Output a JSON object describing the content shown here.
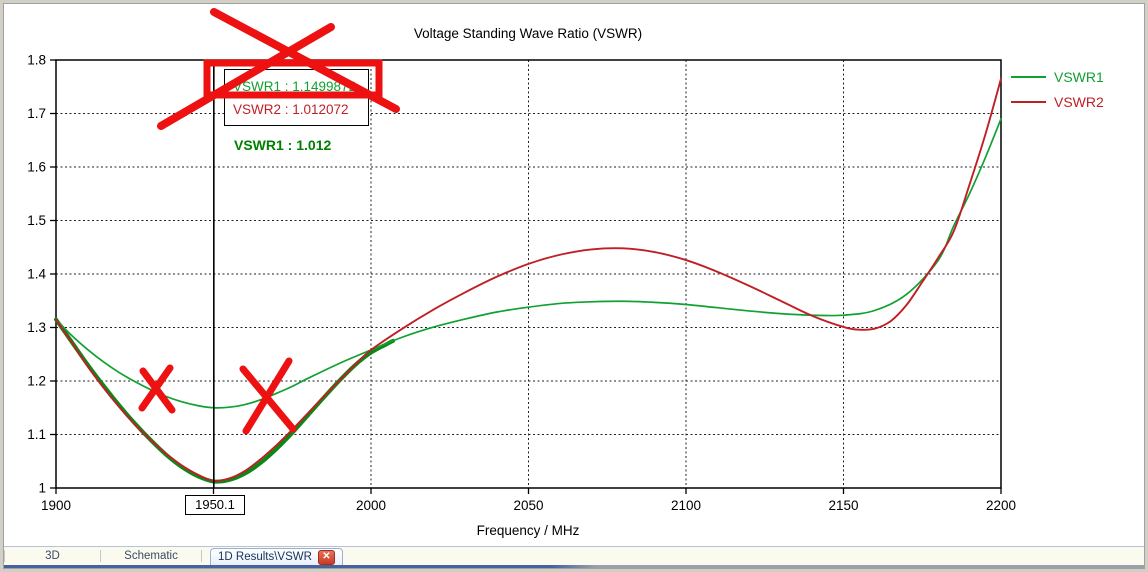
{
  "chart_data": {
    "type": "line",
    "title": "Voltage Standing Wave Ratio (VSWR)",
    "xlabel": "Frequency / MHz",
    "ylabel": "",
    "xlim": [
      1900,
      2200
    ],
    "ylim": [
      1,
      1.8
    ],
    "grid": true,
    "legend_position": "outside-top-right",
    "x_ticks": [
      [
        1900,
        "1900"
      ],
      [
        1950,
        ""
      ],
      [
        2000,
        "2000"
      ],
      [
        2050,
        "2050"
      ],
      [
        2100,
        "2100"
      ],
      [
        2150,
        "2150"
      ],
      [
        2200,
        "2200"
      ]
    ],
    "y_ticks": [
      [
        1,
        "1"
      ],
      [
        1.1,
        "1.1"
      ],
      [
        1.2,
        "1.2"
      ],
      [
        1.3,
        "1.3"
      ],
      [
        1.4,
        "1.4"
      ],
      [
        1.5,
        "1.5"
      ],
      [
        1.6,
        "1.6"
      ],
      [
        1.7,
        "1.7"
      ],
      [
        1.8,
        "1.8"
      ]
    ],
    "legend": [
      {
        "label": "VSWR1",
        "color": "#0fa132"
      },
      {
        "label": "VSWR2",
        "color": "#c01f25"
      }
    ],
    "series": [
      {
        "name": "VSWR1-bold-highlight",
        "color": "#0a8818",
        "width": 4,
        "points": [
          [
            1900,
            1.315
          ],
          [
            1905,
            1.273
          ],
          [
            1910,
            1.231
          ],
          [
            1915,
            1.192
          ],
          [
            1920,
            1.155
          ],
          [
            1925,
            1.121
          ],
          [
            1930,
            1.09
          ],
          [
            1935,
            1.062
          ],
          [
            1940,
            1.039
          ],
          [
            1945,
            1.022
          ],
          [
            1950,
            1.0122
          ],
          [
            1955,
            1.015
          ],
          [
            1960,
            1.027
          ],
          [
            1965,
            1.047
          ],
          [
            1970,
            1.073
          ],
          [
            1975,
            1.103
          ],
          [
            1980,
            1.136
          ],
          [
            1985,
            1.169
          ],
          [
            1990,
            1.201
          ],
          [
            1995,
            1.23
          ],
          [
            2000,
            1.253
          ],
          [
            2005,
            1.269
          ],
          [
            2007,
            1.275
          ]
        ]
      },
      {
        "name": "VSWR1",
        "color": "#0fa132",
        "width": 1.7,
        "points": [
          [
            1900,
            1.315
          ],
          [
            1905,
            1.285
          ],
          [
            1910,
            1.259
          ],
          [
            1915,
            1.236
          ],
          [
            1920,
            1.216
          ],
          [
            1925,
            1.199
          ],
          [
            1930,
            1.184
          ],
          [
            1935,
            1.171
          ],
          [
            1940,
            1.161
          ],
          [
            1945,
            1.154
          ],
          [
            1950,
            1.15
          ],
          [
            1955,
            1.151
          ],
          [
            1960,
            1.156
          ],
          [
            1965,
            1.165
          ],
          [
            1970,
            1.177
          ],
          [
            1975,
            1.19
          ],
          [
            1980,
            1.205
          ],
          [
            1990,
            1.233
          ],
          [
            2000,
            1.258
          ],
          [
            2010,
            1.282
          ],
          [
            2020,
            1.301
          ],
          [
            2030,
            1.316
          ],
          [
            2040,
            1.329
          ],
          [
            2050,
            1.338
          ],
          [
            2060,
            1.345
          ],
          [
            2070,
            1.348
          ],
          [
            2080,
            1.349
          ],
          [
            2090,
            1.347
          ],
          [
            2100,
            1.343
          ],
          [
            2110,
            1.337
          ],
          [
            2120,
            1.331
          ],
          [
            2130,
            1.326
          ],
          [
            2140,
            1.323
          ],
          [
            2150,
            1.323
          ],
          [
            2160,
            1.332
          ],
          [
            2170,
            1.362
          ],
          [
            2180,
            1.425
          ],
          [
            2185,
            1.49
          ],
          [
            2190,
            1.55
          ],
          [
            2195,
            1.617
          ],
          [
            2200,
            1.69
          ]
        ]
      },
      {
        "name": "VSWR2",
        "color": "#c01f25",
        "width": 1.9,
        "points": [
          [
            1900,
            1.315
          ],
          [
            1905,
            1.272
          ],
          [
            1910,
            1.228
          ],
          [
            1915,
            1.188
          ],
          [
            1920,
            1.152
          ],
          [
            1925,
            1.119
          ],
          [
            1930,
            1.09
          ],
          [
            1935,
            1.064
          ],
          [
            1940,
            1.042
          ],
          [
            1945,
            1.025
          ],
          [
            1950,
            1.0135
          ],
          [
            1955,
            1.018
          ],
          [
            1960,
            1.032
          ],
          [
            1965,
            1.054
          ],
          [
            1970,
            1.08
          ],
          [
            1975,
            1.109
          ],
          [
            1980,
            1.14
          ],
          [
            1985,
            1.171
          ],
          [
            1990,
            1.201
          ],
          [
            1995,
            1.231
          ],
          [
            2000,
            1.258
          ],
          [
            2010,
            1.298
          ],
          [
            2020,
            1.334
          ],
          [
            2030,
            1.366
          ],
          [
            2040,
            1.395
          ],
          [
            2050,
            1.419
          ],
          [
            2060,
            1.436
          ],
          [
            2070,
            1.446
          ],
          [
            2080,
            1.448
          ],
          [
            2090,
            1.441
          ],
          [
            2100,
            1.426
          ],
          [
            2110,
            1.404
          ],
          [
            2120,
            1.378
          ],
          [
            2130,
            1.35
          ],
          [
            2140,
            1.322
          ],
          [
            2150,
            1.301
          ],
          [
            2155,
            1.296
          ],
          [
            2160,
            1.298
          ],
          [
            2165,
            1.312
          ],
          [
            2170,
            1.342
          ],
          [
            2175,
            1.385
          ],
          [
            2180,
            1.43
          ],
          [
            2185,
            1.48
          ],
          [
            2190,
            1.567
          ],
          [
            2195,
            1.66
          ],
          [
            2200,
            1.765
          ]
        ]
      }
    ],
    "marker": {
      "x": 1950.1,
      "x_label": "1950.1",
      "readouts": [
        {
          "text": "VSWR1 : 1.1499872",
          "color": "#0fa132"
        },
        {
          "text": "VSWR2 : 1.012072",
          "color": "#c01f25"
        }
      ],
      "extra_readout": {
        "text": "VSWR1 : 1.012",
        "color": "#008000"
      }
    }
  },
  "annotations": {
    "color": "#ed1111",
    "big_x_lines": [
      [
        210,
        8,
        392,
        105
      ],
      [
        327,
        23,
        157,
        122
      ]
    ],
    "highlight_rect": [
      203,
      59,
      172,
      32
    ],
    "small_x_marks": [
      [
        [
          139,
          367,
          168,
          406
        ],
        [
          166,
          364,
          138,
          404
        ]
      ],
      [
        [
          239,
          365,
          289,
          425
        ],
        [
          285,
          357,
          242,
          427
        ]
      ]
    ]
  },
  "tab_bar": {
    "tabs": [
      {
        "label": "3D",
        "active": false
      },
      {
        "label": "Schematic",
        "active": false
      },
      {
        "label": "1D Results\\VSWR",
        "active": true,
        "closable": true
      }
    ]
  }
}
